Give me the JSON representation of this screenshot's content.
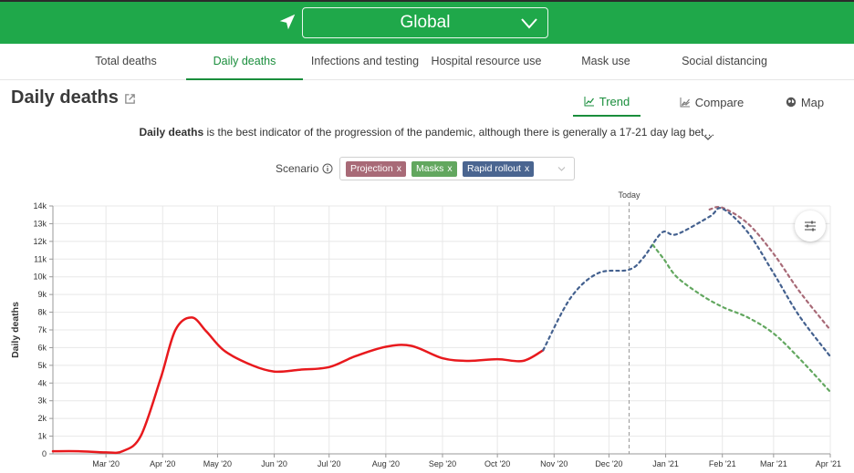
{
  "header": {
    "region": "Global",
    "icons": {
      "location": "location-arrow-icon",
      "dropdown": "chevron-down-icon"
    }
  },
  "nav": {
    "tabs": [
      {
        "label": "Total deaths",
        "active": false
      },
      {
        "label": "Daily deaths",
        "active": true
      },
      {
        "label": "Infections and testing",
        "active": false
      },
      {
        "label": "Hospital resource use",
        "active": false
      },
      {
        "label": "Mask use",
        "active": false
      },
      {
        "label": "Social distancing",
        "active": false
      }
    ]
  },
  "page": {
    "title": "Daily deaths",
    "view_tabs": [
      {
        "label": "Trend",
        "icon": "trend-icon",
        "active": true
      },
      {
        "label": "Compare",
        "icon": "compare-icon",
        "active": false
      },
      {
        "label": "Map",
        "icon": "globe-icon",
        "active": false
      }
    ],
    "description_bold": "Daily deaths",
    "description_rest": " is the best indicator of the progression of the pandemic, although there is generally a 17-21 day lag bet…"
  },
  "scenario": {
    "label": "Scenario",
    "chips": [
      {
        "label": "Projection",
        "color": "#a86a77"
      },
      {
        "label": "Masks",
        "color": "#62a75f"
      },
      {
        "label": "Rapid rollout",
        "color": "#4a6590"
      }
    ],
    "remove_glyph": "x"
  },
  "colors": {
    "accent": "#1fa84a",
    "active_text": "#1a8e3c",
    "observed": "#e8191d",
    "projection": "#a86a77",
    "masks": "#62a75f",
    "rapid_rollout": "#44618f"
  },
  "chart_data": {
    "type": "line",
    "ylabel": "Daily deaths",
    "xlabel": "",
    "today_label": "Today",
    "today_x": "2020-12-12",
    "x_range": [
      "2020-02-01",
      "2021-04-01"
    ],
    "ylim": [
      0,
      14000
    ],
    "y_ticks": [
      0,
      1000,
      2000,
      3000,
      4000,
      5000,
      6000,
      7000,
      8000,
      9000,
      10000,
      11000,
      12000,
      13000,
      14000
    ],
    "y_tick_labels": [
      "0",
      "1k",
      "2k",
      "3k",
      "4k",
      "5k",
      "6k",
      "7k",
      "8k",
      "9k",
      "10k",
      "11k",
      "12k",
      "13k",
      "14k"
    ],
    "x_ticks": [
      "2020-03-01",
      "2020-04-01",
      "2020-05-01",
      "2020-06-01",
      "2020-07-01",
      "2020-08-01",
      "2020-09-01",
      "2020-10-01",
      "2020-11-01",
      "2020-12-01",
      "2021-01-01",
      "2021-02-01",
      "2021-03-01",
      "2021-04-01"
    ],
    "x_tick_labels": [
      "Mar '20",
      "Apr '20",
      "May '20",
      "Jun '20",
      "Jul '20",
      "Aug '20",
      "Sep '20",
      "Oct '20",
      "Nov '20",
      "Dec '20",
      "Jan '21",
      "Feb '21",
      "Mar '21",
      "Apr '21"
    ],
    "grid": true,
    "series": [
      {
        "name": "",
        "style": "solid",
        "color": "#e8191d",
        "points": [
          [
            "2020-02-01",
            150
          ],
          [
            "2020-02-15",
            150
          ],
          [
            "2020-03-01",
            80
          ],
          [
            "2020-03-10",
            150
          ],
          [
            "2020-03-20",
            1000
          ],
          [
            "2020-03-31",
            4300
          ],
          [
            "2020-04-08",
            7000
          ],
          [
            "2020-04-17",
            7700
          ],
          [
            "2020-04-25",
            6900
          ],
          [
            "2020-05-05",
            5800
          ],
          [
            "2020-05-20",
            5000
          ],
          [
            "2020-06-01",
            4650
          ],
          [
            "2020-06-15",
            4750
          ],
          [
            "2020-07-01",
            4900
          ],
          [
            "2020-07-15",
            5500
          ],
          [
            "2020-08-01",
            6050
          ],
          [
            "2020-08-15",
            6100
          ],
          [
            "2020-09-01",
            5400
          ],
          [
            "2020-09-15",
            5250
          ],
          [
            "2020-10-01",
            5350
          ],
          [
            "2020-10-15",
            5250
          ],
          [
            "2020-10-26",
            5850
          ]
        ]
      },
      {
        "name": "Projection",
        "style": "dashed",
        "color": "#a86a77",
        "points": [
          [
            "2021-01-25",
            13800
          ],
          [
            "2021-02-01",
            13900
          ],
          [
            "2021-02-15",
            13000
          ],
          [
            "2021-03-01",
            11300
          ],
          [
            "2021-03-15",
            9200
          ],
          [
            "2021-04-01",
            7000
          ]
        ]
      },
      {
        "name": "Rapid rollout",
        "style": "dashed",
        "color": "#44618f",
        "points": [
          [
            "2020-10-26",
            5850
          ],
          [
            "2020-11-10",
            8800
          ],
          [
            "2020-11-25",
            10200
          ],
          [
            "2020-12-12",
            10400
          ],
          [
            "2020-12-20",
            11100
          ],
          [
            "2020-12-30",
            12500
          ],
          [
            "2021-01-07",
            12400
          ],
          [
            "2021-01-25",
            13400
          ],
          [
            "2021-02-01",
            13850
          ],
          [
            "2021-02-15",
            12500
          ],
          [
            "2021-03-01",
            10200
          ],
          [
            "2021-03-15",
            7800
          ],
          [
            "2021-04-01",
            5500
          ]
        ]
      },
      {
        "name": "Masks",
        "style": "dashed",
        "color": "#62a75f",
        "points": [
          [
            "2020-12-25",
            11800
          ],
          [
            "2020-12-31",
            11000
          ],
          [
            "2021-01-07",
            10000
          ],
          [
            "2021-01-20",
            9000
          ],
          [
            "2021-02-01",
            8300
          ],
          [
            "2021-02-15",
            7700
          ],
          [
            "2021-03-01",
            6800
          ],
          [
            "2021-03-15",
            5400
          ],
          [
            "2021-04-01",
            3500
          ]
        ]
      }
    ]
  }
}
